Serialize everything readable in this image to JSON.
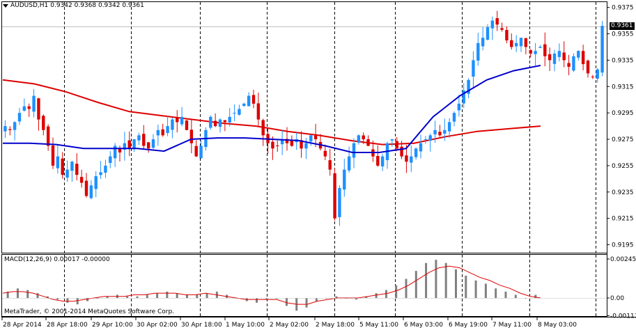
{
  "header": {
    "symbol": "AUDUSD,H1",
    "ohlc": "0.9342 0.9368 0.9342 0.9361",
    "current_price": "0.9361"
  },
  "macd": {
    "label": "MACD(12,26,9) 0.00017 -0.00000",
    "axis_labels": [
      "0.00245",
      "0.00",
      "-0.00111"
    ]
  },
  "copyright": "MetaTrader, © 2001-2014 MetaQuotes Software Corp.",
  "price_axis": [
    "0.9375",
    "0.9355",
    "0.9335",
    "0.9315",
    "0.9295",
    "0.9275",
    "0.9255",
    "0.9235",
    "0.9215",
    "0.9195"
  ],
  "time_axis": [
    "28 Apr 2014",
    "28 Apr 18:00",
    "29 Apr 10:00",
    "30 Apr 02:00",
    "30 Apr 18:00",
    "1 May 10:00",
    "2 May 02:00",
    "2 May 18:00",
    "5 May 11:00",
    "6 May 03:00",
    "6 May 19:00",
    "7 May 11:00",
    "8 May 03:00"
  ],
  "colors": {
    "bull": "#1e90ff",
    "bear": "#dd0000",
    "ma_slow": "#dd0000",
    "ma_fast": "#0000cc",
    "macd_hist": "#808080",
    "macd_signal": "#dd0000",
    "grid": "#000000",
    "background": "#ffffff"
  },
  "chart_data": {
    "type": "candlestick",
    "symbol": "AUDUSD",
    "timeframe": "H1",
    "ylim": [
      0.919,
      0.9378
    ],
    "close_path": [
      0.9285,
      0.9282,
      0.9288,
      0.9295,
      0.93,
      0.9298,
      0.9308,
      0.929,
      0.9282,
      0.927,
      0.9255,
      0.9262,
      0.9248,
      0.9252,
      0.9258,
      0.9248,
      0.9242,
      0.9232,
      0.924,
      0.9247,
      0.925,
      0.9255,
      0.9262,
      0.927,
      0.9265,
      0.9272,
      0.9268,
      0.9275,
      0.9278,
      0.927,
      0.9268,
      0.9275,
      0.9282,
      0.9278,
      0.9285,
      0.929,
      0.9288,
      0.9292,
      0.9282,
      0.9272,
      0.9262,
      0.927,
      0.9282,
      0.9292,
      0.9285,
      0.929,
      0.9288,
      0.9292,
      0.9295,
      0.9298,
      0.9302,
      0.9308,
      0.9302,
      0.929,
      0.9278,
      0.9272,
      0.9268,
      0.927,
      0.9275,
      0.9272,
      0.927,
      0.9275,
      0.9268,
      0.9272,
      0.9278,
      0.9275,
      0.9268,
      0.9262,
      0.9252,
      0.9215,
      0.9238,
      0.9252,
      0.9262,
      0.9272,
      0.9278,
      0.9275,
      0.927,
      0.9262,
      0.9255,
      0.9262,
      0.9272,
      0.9275,
      0.9268,
      0.9262,
      0.9258,
      0.9262,
      0.9268,
      0.9272,
      0.9275,
      0.9278,
      0.9282,
      0.9278,
      0.9282,
      0.9288,
      0.9295,
      0.9302,
      0.9312,
      0.932,
      0.9335,
      0.9348,
      0.9352,
      0.936,
      0.9365,
      0.9362,
      0.9358,
      0.935,
      0.9345,
      0.9348,
      0.9352,
      0.9345,
      0.934,
      0.9342,
      0.9345,
      0.9338,
      0.9335,
      0.934,
      0.9342,
      0.9335,
      0.933,
      0.9338,
      0.9342,
      0.9332,
      0.9325,
      0.9322,
      0.9328,
      0.9361
    ],
    "ma_slow": [
      0.932,
      0.9317,
      0.9311,
      0.9303,
      0.9296,
      0.9293,
      0.929,
      0.9287,
      0.9285,
      0.9281,
      0.9278,
      0.9274,
      0.9271,
      0.9272,
      0.9277,
      0.9281,
      0.9283,
      0.9285
    ],
    "ma_fast": [
      0.9272,
      0.9272,
      0.9271,
      0.9268,
      0.9268,
      0.9268,
      0.9266,
      0.9275,
      0.9276,
      0.9276,
      0.9275,
      0.9274,
      0.927,
      0.9265,
      0.9265,
      0.9268,
      0.9292,
      0.9308,
      0.932,
      0.9327,
      0.9331
    ],
    "macd": {
      "histogram": [
        0.0004,
        0.0006,
        0.0005,
        0.0003,
        0.0001,
        -0.0001,
        -0.0003,
        -0.0004,
        -0.0002,
        0.0,
        0.0001,
        0.0002,
        0.0001,
        0.0001,
        0.0002,
        0.0003,
        0.0004,
        0.0003,
        0.0002,
        0.0002,
        0.0003,
        0.0004,
        0.0002,
        0.0,
        -0.0002,
        -0.0003,
        -0.0001,
        0.0,
        -0.0005,
        -0.0008,
        -0.0006,
        -0.0002,
        0.0,
        0.0001,
        0.0,
        -0.0001,
        0.0001,
        0.0003,
        0.0005,
        0.0008,
        0.0012,
        0.0017,
        0.0022,
        0.0024,
        0.0022,
        0.0018,
        0.0014,
        0.0011,
        0.0009,
        0.0006,
        0.0004,
        0.0002,
        0.0,
        0.0002
      ],
      "signal": [
        0.0003,
        0.0004,
        0.0004,
        0.0003,
        0.0001,
        -0.0001,
        -0.0002,
        -0.0002,
        -0.0001,
        0.0,
        0.0001,
        0.0001,
        0.0001,
        0.0002,
        0.0002,
        0.0003,
        0.0003,
        0.0003,
        0.0002,
        0.0002,
        0.0003,
        0.0002,
        0.0001,
        0.0,
        -0.0001,
        -0.0001,
        -0.0001,
        -0.0001,
        -0.0003,
        -0.0004,
        -0.0004,
        -0.0002,
        -0.0001,
        0.0,
        0.0,
        0.0,
        0.0001,
        0.0002,
        0.0003,
        0.0005,
        0.0008,
        0.0012,
        0.0016,
        0.0019,
        0.002,
        0.0019,
        0.0016,
        0.0013,
        0.0011,
        0.0008,
        0.0006,
        0.0003,
        0.0001,
        0.0
      ]
    }
  }
}
